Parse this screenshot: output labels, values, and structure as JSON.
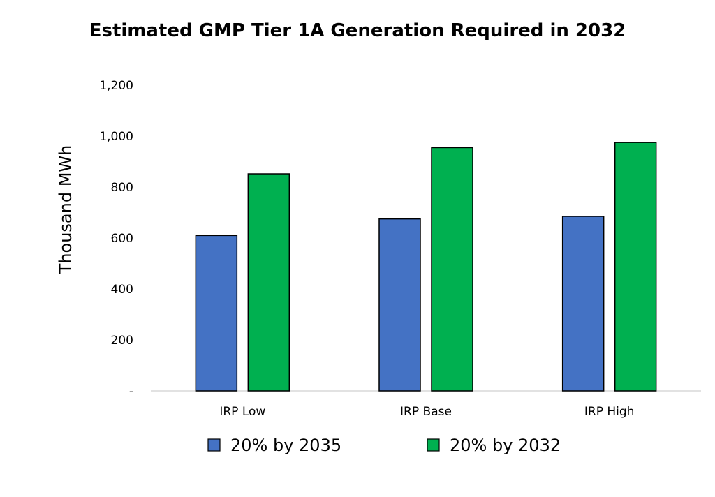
{
  "chart_data": {
    "type": "bar",
    "title": "Estimated GMP Tier 1A Generation Required in 2032",
    "xlabel": "",
    "ylabel": "Thousand MWh",
    "categories": [
      "IRP Low",
      "IRP Base",
      "IRP High"
    ],
    "series": [
      {
        "name": "20% by 2035",
        "color": "#4472C4",
        "values": [
          610,
          675,
          685
        ]
      },
      {
        "name": "20% by 2032",
        "color": "#00B050",
        "values": [
          852,
          955,
          975
        ]
      }
    ],
    "ylim": [
      0,
      1200
    ],
    "yticks": [
      0,
      200,
      400,
      600,
      800,
      1000,
      1200
    ],
    "ytick_labels": [
      "-",
      "200",
      "400",
      "600",
      "800",
      "1,000",
      "1,200"
    ],
    "grid": false,
    "legend_position": "bottom"
  }
}
